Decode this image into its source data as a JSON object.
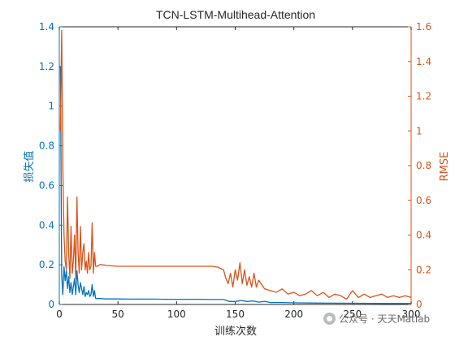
{
  "chart_data": {
    "type": "line",
    "title": "TCN-LSTM-Multihead-Attention",
    "xlabel": "训练次数",
    "ylabel_left": "损失值",
    "ylabel_right": "RMSE",
    "xlim": [
      0,
      300
    ],
    "ylim_left": [
      0,
      1.4
    ],
    "ylim_right": [
      0,
      1.6
    ],
    "x_ticks": [
      "0",
      "50",
      "100",
      "150",
      "200",
      "250",
      "300"
    ],
    "y_left_ticks": [
      "0",
      "0.2",
      "0.4",
      "0.6",
      "0.8",
      "1",
      "1.2",
      "1.4"
    ],
    "y_right_ticks": [
      "0",
      "0.2",
      "0.4",
      "0.6",
      "0.8",
      "1",
      "1.2",
      "1.4",
      "1.6"
    ],
    "grid": false,
    "colors": {
      "loss": "#0072BD",
      "rmse": "#D95319",
      "axis": "#262626"
    },
    "series": [
      {
        "axis": "left",
        "x": [
          1,
          2,
          3,
          4,
          5,
          6,
          7,
          8,
          9,
          10,
          11,
          12,
          13,
          14,
          15,
          16,
          17,
          18,
          19,
          20,
          21,
          22,
          23,
          24,
          25,
          26,
          27,
          28,
          29,
          30,
          31,
          32,
          35,
          40,
          50,
          60,
          70,
          80,
          90,
          100,
          110,
          120,
          130,
          140,
          145,
          150,
          155,
          160,
          165,
          170,
          175,
          180,
          190,
          200,
          220,
          250,
          280,
          300
        ],
        "values": [
          1.2,
          0.15,
          0.05,
          0.19,
          0.12,
          0.17,
          0.08,
          0.14,
          0.06,
          0.11,
          0.05,
          0.09,
          0.13,
          0.05,
          0.17,
          0.1,
          0.06,
          0.11,
          0.08,
          0.05,
          0.09,
          0.04,
          0.06,
          0.05,
          0.07,
          0.04,
          0.05,
          0.1,
          0.04,
          0.07,
          0.03,
          0.03,
          0.03,
          0.028,
          0.028,
          0.027,
          0.027,
          0.027,
          0.026,
          0.026,
          0.026,
          0.026,
          0.025,
          0.025,
          0.015,
          0.015,
          0.02,
          0.015,
          0.018,
          0.012,
          0.016,
          0.01,
          0.01,
          0.008,
          0.007,
          0.006,
          0.005,
          0.005
        ]
      },
      {
        "axis": "right",
        "x": [
          1,
          2,
          3,
          4,
          5,
          6,
          7,
          8,
          9,
          10,
          11,
          12,
          13,
          14,
          15,
          16,
          17,
          18,
          19,
          20,
          21,
          22,
          23,
          24,
          25,
          26,
          27,
          28,
          29,
          30,
          31,
          32,
          35,
          40,
          50,
          60,
          70,
          80,
          90,
          100,
          110,
          120,
          130,
          135,
          140,
          142,
          144,
          146,
          148,
          150,
          152,
          154,
          156,
          158,
          160,
          162,
          164,
          166,
          168,
          170,
          175,
          180,
          185,
          190,
          195,
          200,
          205,
          210,
          215,
          220,
          225,
          230,
          235,
          240,
          245,
          250,
          255,
          260,
          265,
          270,
          275,
          280,
          285,
          290,
          295,
          300
        ],
        "values": [
          1.0,
          1.58,
          0.8,
          0.4,
          0.25,
          0.2,
          0.62,
          0.3,
          0.15,
          0.45,
          0.18,
          0.25,
          0.4,
          0.15,
          0.62,
          0.3,
          0.18,
          0.45,
          0.2,
          0.3,
          0.35,
          0.2,
          0.25,
          0.18,
          0.3,
          0.2,
          0.22,
          0.47,
          0.18,
          0.3,
          0.22,
          0.22,
          0.23,
          0.225,
          0.22,
          0.22,
          0.22,
          0.22,
          0.22,
          0.22,
          0.22,
          0.22,
          0.22,
          0.215,
          0.2,
          0.15,
          0.12,
          0.18,
          0.1,
          0.2,
          0.14,
          0.24,
          0.12,
          0.2,
          0.11,
          0.16,
          0.1,
          0.18,
          0.1,
          0.14,
          0.09,
          0.08,
          0.07,
          0.09,
          0.06,
          0.07,
          0.05,
          0.06,
          0.08,
          0.05,
          0.07,
          0.04,
          0.06,
          0.05,
          0.03,
          0.08,
          0.04,
          0.06,
          0.04,
          0.05,
          0.06,
          0.04,
          0.05,
          0.04,
          0.05,
          0.04
        ]
      }
    ]
  },
  "watermark": {
    "text": "公众号 · 天天Matlab",
    "icon": "wechat-icon"
  }
}
